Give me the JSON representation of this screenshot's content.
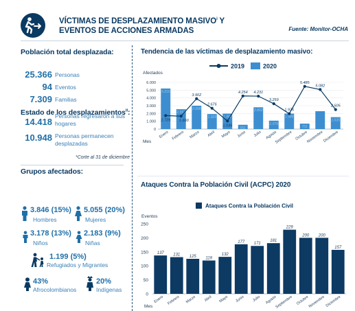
{
  "header": {
    "title_line1": "VÍCTIMAS DE DESPLAZAMIENTO MASIVO",
    "title_sup": "i",
    "title_line1_end": " Y",
    "title_line2": "EVENTOS DE ACCIONES ARMADAS",
    "source": "Fuente: Monitor-OCHA",
    "icon": "person-running-arrow-icon"
  },
  "poblacion": {
    "title": "Población total desplazada:",
    "stats": [
      {
        "value": "25.366",
        "label": "Personas"
      },
      {
        "value": "94",
        "label": "Eventos"
      },
      {
        "value": "7.309",
        "label": "Familias"
      }
    ]
  },
  "estado": {
    "title": "Estado de los desplazamientos",
    "title_sup": "ii",
    "title_end": ":",
    "items": [
      {
        "value": "14.418",
        "label_line1": "Personas regresaron a sus",
        "label_line2": "hogares"
      },
      {
        "value": "10.948",
        "label_line1": "Personas permanecen",
        "label_line2": "desplazadas"
      }
    ],
    "note": "*Corte al 31 de diciembre"
  },
  "grupos": {
    "title": "Grupos afectados:",
    "hombres": {
      "value": "3.846 (15%)",
      "label": "Hombres",
      "icon": "man-icon"
    },
    "mujeres": {
      "value": "5.055 (20%)",
      "label": "Mujeres",
      "icon": "woman-icon"
    },
    "ninos": {
      "value": "3.178 (13%)",
      "label": "Niños",
      "icon": "boy-icon"
    },
    "ninas": {
      "value": "2.183 (9%)",
      "label": "Niñas",
      "icon": "girl-icon"
    },
    "refugiados": {
      "value": "1.199 (5%)",
      "label": "Refugiados y Migrantes",
      "icon": "family-walking-icon"
    },
    "afro": {
      "value": "43%",
      "label": "Afrocolombianos",
      "icon": "afro-woman-icon"
    },
    "indigenas": {
      "value": "20%",
      "label": "Indígenas",
      "icon": "indigenous-person-icon"
    }
  },
  "colors": {
    "navy": "#0a3a62",
    "bar_light": "#3d8ed0",
    "bar_dark": "#0d3a63",
    "line": "#0a3a62"
  },
  "chart_data": [
    {
      "type": "bar",
      "title": "Tendencia de las víctimas de desplazamiento masivo:",
      "ylabel": "Afectados",
      "xlabel": "Mes",
      "ylim": [
        0,
        6000
      ],
      "yticks": [
        0,
        1000,
        2000,
        3000,
        4000,
        5000,
        6000
      ],
      "ytick_labels": [
        "0",
        "1.000",
        "2.000",
        "3.000",
        "4.000",
        "5.000",
        "6.000"
      ],
      "categories": [
        "Enero",
        "Febrero",
        "Marzo",
        "Abril",
        "Mayo",
        "Junio",
        "Julio",
        "Agosto",
        "Septiembre",
        "Octubre",
        "Noviembre",
        "Diciembre"
      ],
      "legend_position": "top",
      "series": [
        {
          "name": "2019",
          "kind": "line",
          "values": [
            1729,
            1660,
            3902,
            2676,
            1035,
            4254,
            4231,
            3259,
            1976,
            5485,
            5082,
            2505
          ],
          "labels": [
            "1.729",
            "1.660",
            "3.902",
            "2.676",
            "1.035",
            "4.254",
            "4.231",
            "3.259",
            "1.976",
            "5.485",
            "5.082",
            "2.505"
          ]
        },
        {
          "name": "2020",
          "kind": "bar",
          "values": [
            5215,
            2552,
            2998,
            1929,
            1982,
            551,
            2802,
            1079,
            1988,
            701,
            2300,
            1535
          ],
          "labels": [
            "5.215",
            "2.552",
            "2.998",
            "1.929",
            "1.982",
            "551",
            "2.802",
            "1.079",
            "1.988",
            "701",
            "",
            "1.535"
          ]
        }
      ]
    },
    {
      "type": "bar",
      "title": "Ataques Contra la Población Civil (ACPC) 2020",
      "ylabel": "Eventos",
      "xlabel": "Mes",
      "ylim": [
        0,
        250
      ],
      "yticks": [
        0,
        50,
        100,
        150,
        200,
        250
      ],
      "categories": [
        "Enero",
        "Febrero",
        "Marzo",
        "Abril",
        "Mayo",
        "Junio",
        "Julio",
        "Agosto",
        "Septiembre",
        "Octubre",
        "Noviembre",
        "Diciembre"
      ],
      "legend_position": "top",
      "series": [
        {
          "name": "Ataques Contra la Población Civil",
          "values": [
            137,
            131,
            125,
            119,
            132,
            177,
            171,
            181,
            229,
            200,
            200,
            157
          ]
        }
      ]
    }
  ]
}
